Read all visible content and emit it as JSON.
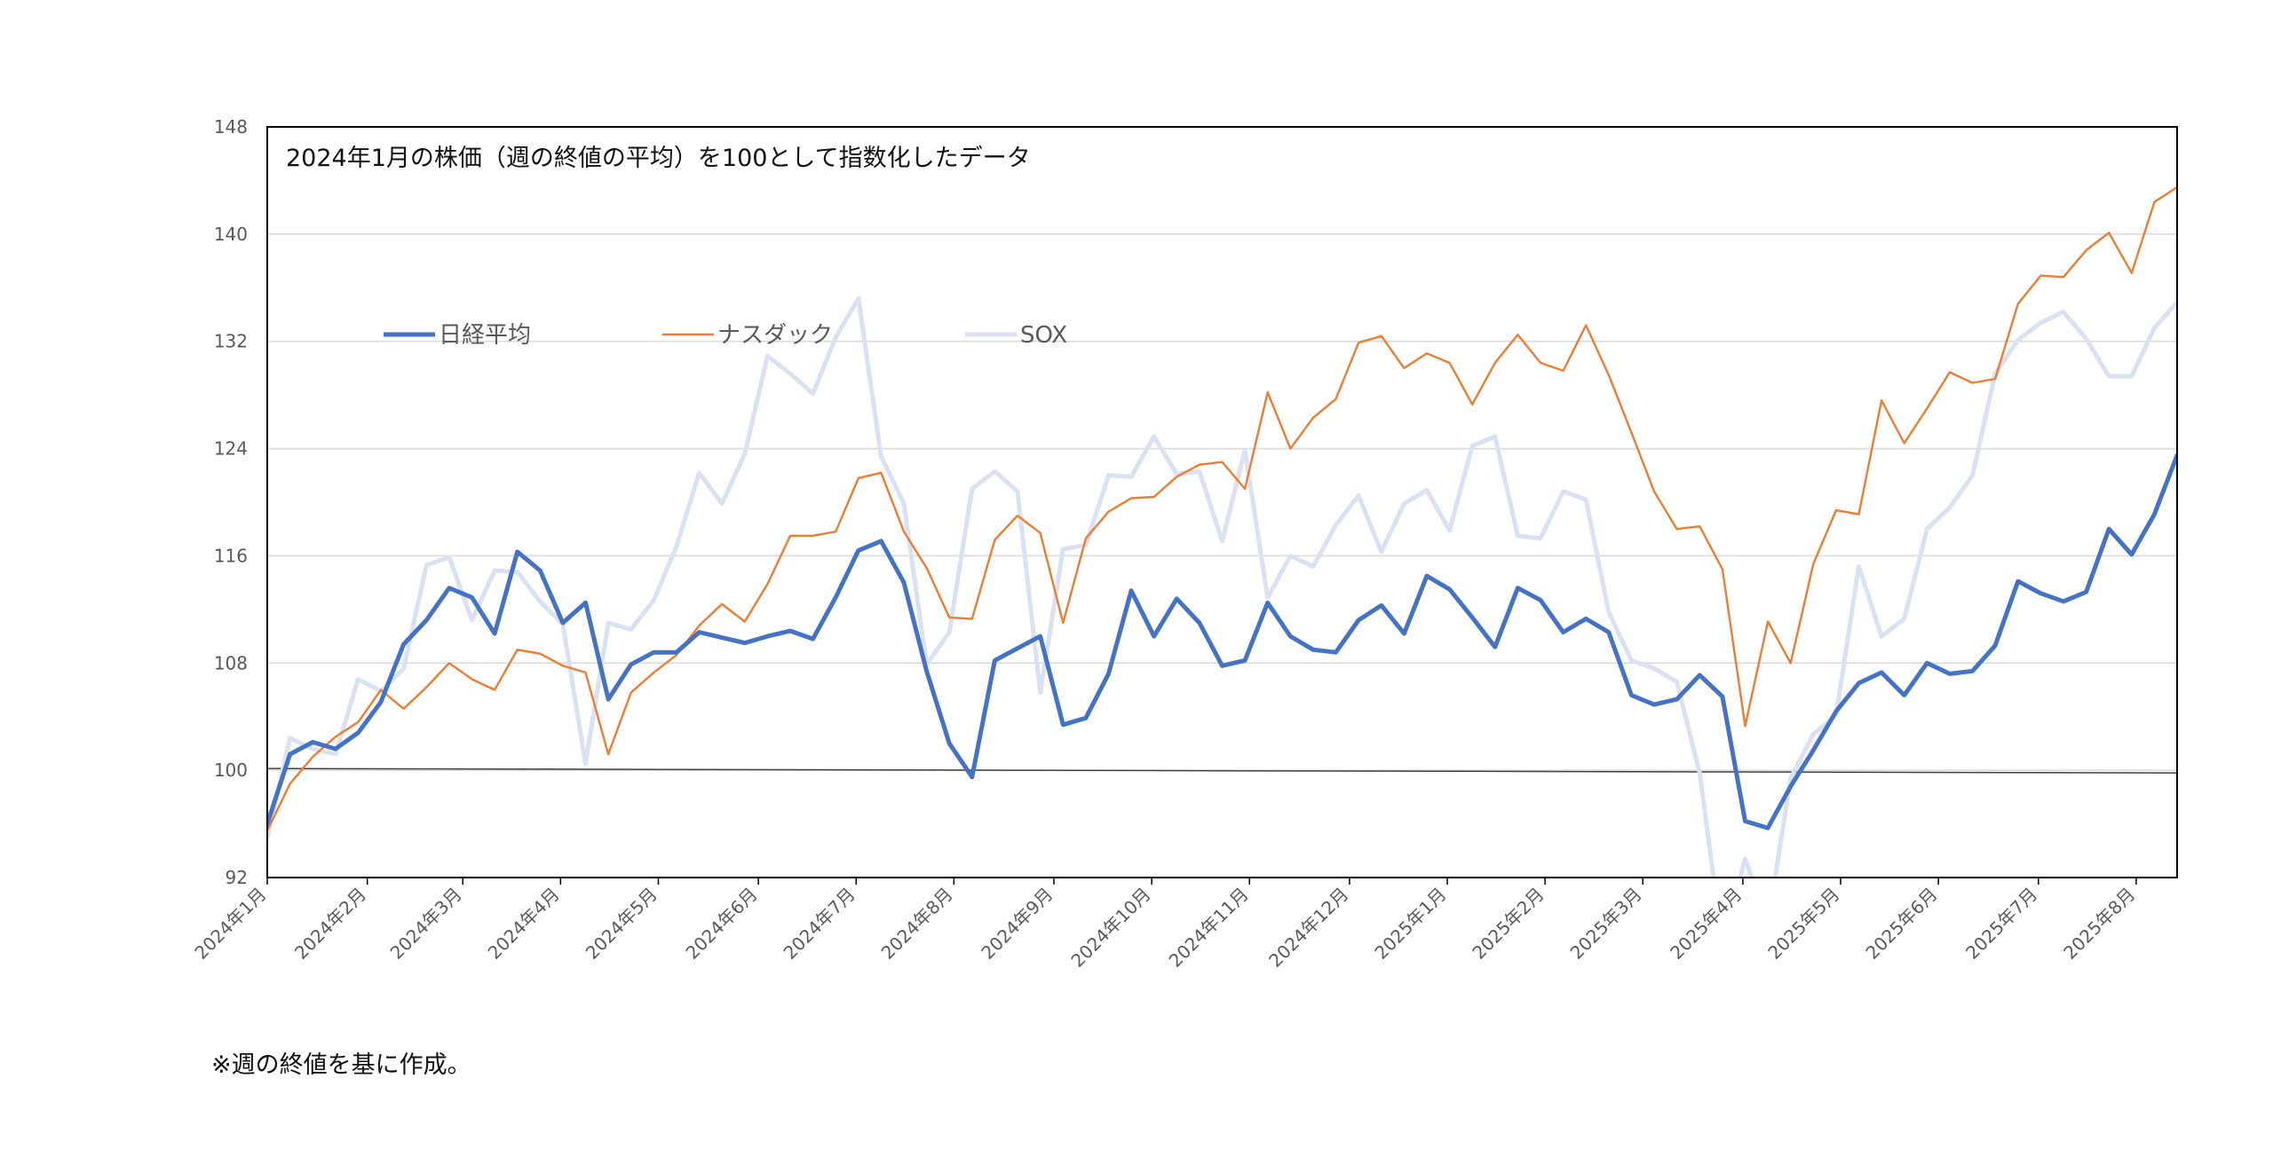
{
  "chart_data": {
    "type": "line",
    "annotation": "2024年1月の株価（週の終値の平均）を100として指数化したデータ",
    "ylim": [
      92,
      148
    ],
    "yticks": [
      92,
      100,
      108,
      116,
      124,
      132,
      140,
      148
    ],
    "reference_line": 100,
    "grid": true,
    "legend_position": "upper-left",
    "xlim": [
      0,
      84
    ],
    "xtick_labels": [
      {
        "pos": 0,
        "label": "2024年1月"
      },
      {
        "pos": 4.4,
        "label": "2024年2月"
      },
      {
        "pos": 8.6,
        "label": "2024年3月"
      },
      {
        "pos": 12.9,
        "label": "2024年4月"
      },
      {
        "pos": 17.2,
        "label": "2024年5月"
      },
      {
        "pos": 21.6,
        "label": "2024年6月"
      },
      {
        "pos": 25.9,
        "label": "2024年7月"
      },
      {
        "pos": 30.2,
        "label": "2024年8月"
      },
      {
        "pos": 34.6,
        "label": "2024年9月"
      },
      {
        "pos": 38.9,
        "label": "2024年10月"
      },
      {
        "pos": 43.2,
        "label": "2024年11月"
      },
      {
        "pos": 47.6,
        "label": "2024年12月"
      },
      {
        "pos": 51.9,
        "label": "2025年1月"
      },
      {
        "pos": 56.2,
        "label": "2025年2月"
      },
      {
        "pos": 60.5,
        "label": "2025年3月"
      },
      {
        "pos": 64.9,
        "label": "2025年4月"
      },
      {
        "pos": 69.2,
        "label": "2025年5月"
      },
      {
        "pos": 73.5,
        "label": "2025年6月"
      },
      {
        "pos": 77.9,
        "label": "2025年7月"
      },
      {
        "pos": 82.2,
        "label": "2025年8月"
      }
    ],
    "series": [
      {
        "name": "日経平均",
        "color": "#4472C4",
        "width": 5,
        "values": [
          96.0,
          101.2,
          102.1,
          101.6,
          102.8,
          105.1,
          109.4,
          111.2,
          113.6,
          112.9,
          110.2,
          116.3,
          114.9,
          111.0,
          112.5,
          105.3,
          107.9,
          108.8,
          108.8,
          110.3,
          109.9,
          109.5,
          110.0,
          110.4,
          109.8,
          112.9,
          116.4,
          117.1,
          114.0,
          107.4,
          102.0,
          99.5,
          108.2,
          109.1,
          110.0,
          103.4,
          103.9,
          107.2,
          113.4,
          110.0,
          112.8,
          111.0,
          107.8,
          108.2,
          112.5,
          110.0,
          109.0,
          108.8,
          111.2,
          112.3,
          110.2,
          114.5,
          113.5,
          111.4,
          109.2,
          113.6,
          112.7,
          110.3,
          111.3,
          110.3,
          105.6,
          104.9,
          105.3,
          107.1,
          105.5,
          96.2,
          95.7,
          98.8,
          101.5,
          104.4,
          106.5,
          107.3,
          105.6,
          108.0,
          107.2,
          107.4,
          109.3,
          114.1,
          113.2,
          112.6,
          113.3,
          118.0,
          116.1,
          119.1,
          123.5
        ]
      },
      {
        "name": "ナスダック",
        "color": "#ED7D31",
        "width": 2.4,
        "values": [
          95.5,
          99.0,
          101.0,
          102.5,
          103.6,
          106.0,
          104.6,
          106.2,
          108.0,
          106.8,
          106.0,
          109.0,
          108.7,
          107.8,
          107.3,
          101.2,
          105.8,
          107.3,
          108.6,
          110.8,
          112.4,
          111.1,
          113.9,
          117.5,
          117.5,
          117.8,
          121.8,
          122.2,
          117.8,
          115.1,
          111.4,
          111.3,
          117.2,
          119.0,
          117.7,
          111.0,
          117.3,
          119.3,
          120.3,
          120.4,
          121.9,
          122.8,
          123.0,
          121.0,
          128.2,
          124.0,
          126.3,
          127.7,
          131.9,
          132.4,
          130.0,
          131.1,
          130.4,
          127.3,
          130.4,
          132.5,
          130.4,
          129.8,
          133.2,
          129.5,
          125.2,
          120.8,
          118.0,
          118.2,
          115.0,
          103.3,
          111.1,
          108.0,
          115.4,
          119.4,
          119.1,
          127.6,
          124.4,
          127.0,
          129.7,
          128.9,
          129.2,
          134.8,
          136.9,
          136.8,
          138.8,
          140.1,
          137.1,
          142.4,
          143.5
        ]
      },
      {
        "name": "SOX",
        "color": "#D9E1F2",
        "width": 5,
        "values": [
          95.0,
          102.4,
          101.6,
          101.2,
          106.8,
          105.9,
          107.6,
          115.3,
          115.9,
          111.2,
          114.9,
          114.8,
          112.6,
          110.9,
          100.5,
          111.0,
          110.5,
          112.7,
          116.7,
          122.2,
          119.9,
          123.6,
          130.9,
          129.6,
          128.1,
          132.3,
          135.2,
          123.4,
          119.9,
          107.9,
          110.3,
          121.0,
          122.3,
          120.8,
          105.8,
          116.5,
          116.8,
          122.0,
          121.9,
          124.9,
          122.1,
          122.3,
          117.1,
          123.9,
          112.9,
          116.0,
          115.2,
          118.3,
          120.5,
          116.3,
          119.9,
          120.9,
          117.9,
          124.2,
          124.9,
          117.5,
          117.3,
          120.8,
          120.2,
          111.8,
          108.2,
          107.6,
          106.6,
          99.8,
          87.0,
          93.4,
          88.5,
          99.4,
          102.7,
          104.1,
          115.2,
          110.0,
          111.3,
          118.0,
          119.6,
          122.0,
          129.6,
          132.1,
          133.4,
          134.2,
          132.2,
          129.4,
          129.4,
          133.0,
          134.9
        ]
      }
    ]
  },
  "footnote": "※週の終値を基に作成。"
}
